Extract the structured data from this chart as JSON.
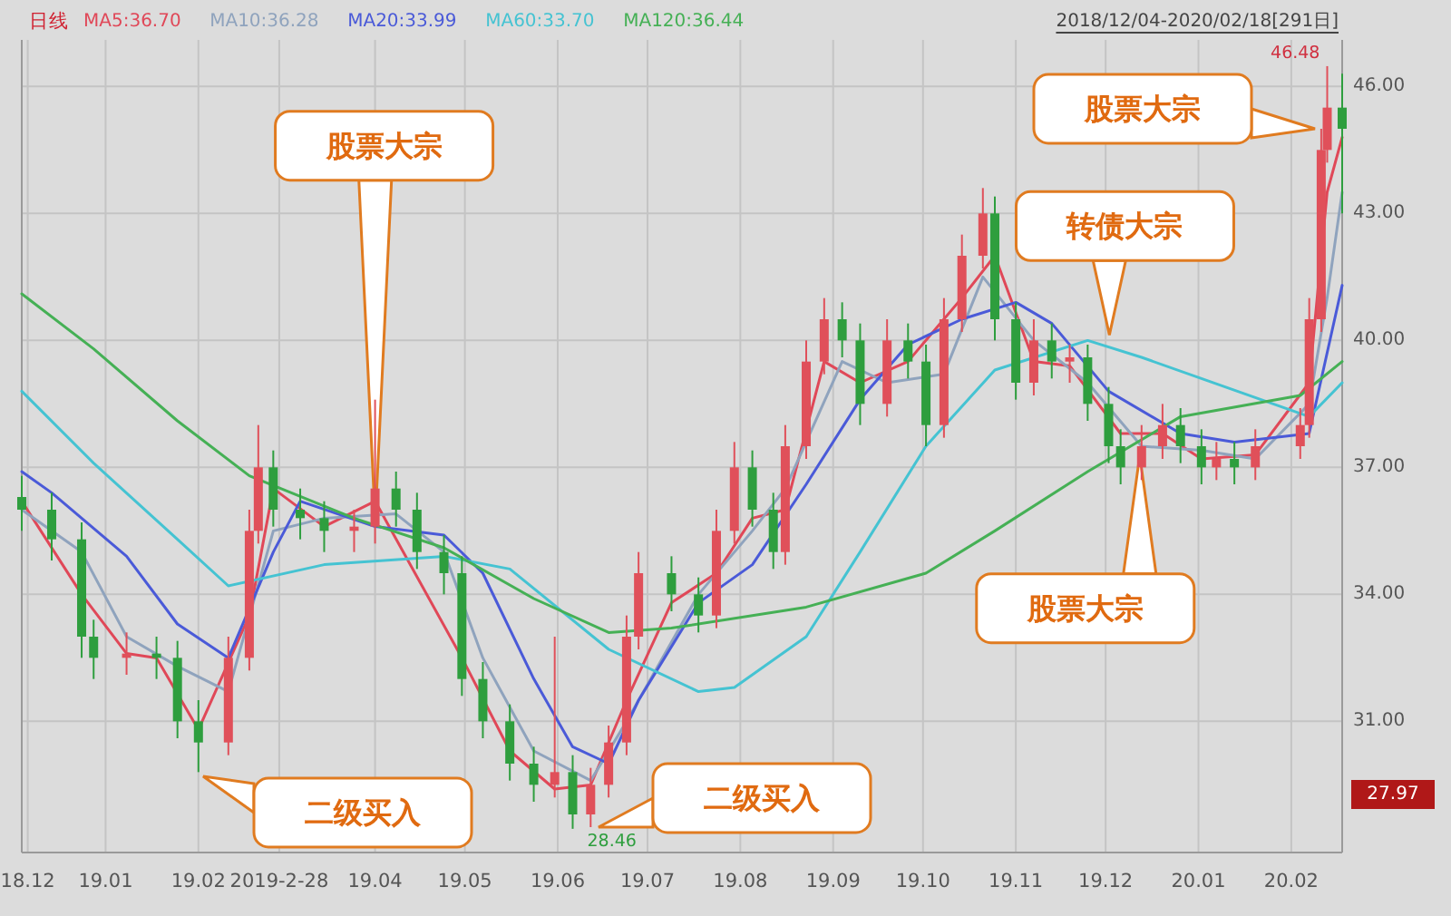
{
  "chart_data": {
    "type": "candlestick",
    "title": "日线",
    "subtitle": "2018/12/04-2020/02/18[291日]",
    "legend": "top left",
    "grid": true,
    "xlim": [
      "2018-12-04",
      "2020-02-18"
    ],
    "ylim": [
      27.9,
      47.1
    ],
    "xticks": [
      {
        "value": "2018-12-06",
        "label": "18.12"
      },
      {
        "value": "2019-01-01",
        "label": "19.01"
      },
      {
        "value": "2019-02-01",
        "label": "19.02"
      },
      {
        "value": "2019-02-28",
        "label": "2019-2-28"
      },
      {
        "value": "2019-04-01",
        "label": "19.04"
      },
      {
        "value": "2019-05-01",
        "label": "19.05"
      },
      {
        "value": "2019-06-01",
        "label": "19.06"
      },
      {
        "value": "2019-07-01",
        "label": "19.07"
      },
      {
        "value": "2019-08-01",
        "label": "19.08"
      },
      {
        "value": "2019-09-01",
        "label": "19.09"
      },
      {
        "value": "2019-10-01",
        "label": "19.10"
      },
      {
        "value": "2019-11-01",
        "label": "19.11"
      },
      {
        "value": "2019-12-01",
        "label": "19.12"
      },
      {
        "value": "2020-01-01",
        "label": "20.01"
      },
      {
        "value": "2020-02-01",
        "label": "20.02"
      }
    ],
    "yticks": [
      {
        "value": 31,
        "label": "31.00"
      },
      {
        "value": 34,
        "label": "34.00"
      },
      {
        "value": 37,
        "label": "37.00"
      },
      {
        "value": 40,
        "label": "40.00"
      },
      {
        "value": 43,
        "label": "43.00"
      },
      {
        "value": 46,
        "label": "46.00"
      }
    ],
    "x": [
      "2018-12-04",
      "2018-12-14",
      "2018-12-24",
      "2018-12-28",
      "2019-01-08",
      "2019-01-18",
      "2019-01-25",
      "2019-02-01",
      "2019-02-11",
      "2019-02-18",
      "2019-02-21",
      "2019-02-26",
      "2019-03-07",
      "2019-03-15",
      "2019-03-25",
      "2019-04-01",
      "2019-04-08",
      "2019-04-15",
      "2019-04-24",
      "2019-04-30",
      "2019-05-07",
      "2019-05-16",
      "2019-05-24",
      "2019-05-31",
      "2019-06-06",
      "2019-06-12",
      "2019-06-18",
      "2019-06-24",
      "2019-06-28",
      "2019-07-09",
      "2019-07-18",
      "2019-07-24",
      "2019-07-30",
      "2019-08-05",
      "2019-08-12",
      "2019-08-16",
      "2019-08-23",
      "2019-08-29",
      "2019-09-04",
      "2019-09-10",
      "2019-09-19",
      "2019-09-26",
      "2019-10-02",
      "2019-10-08",
      "2019-10-14",
      "2019-10-21",
      "2019-10-25",
      "2019-11-01",
      "2019-11-07",
      "2019-11-13",
      "2019-11-19",
      "2019-11-25",
      "2019-12-02",
      "2019-12-06",
      "2019-12-13",
      "2019-12-20",
      "2019-12-26",
      "2020-01-02",
      "2020-01-07",
      "2020-01-13",
      "2020-01-20",
      "2020-02-04",
      "2020-02-07",
      "2020-02-11",
      "2020-02-13",
      "2020-02-18"
    ],
    "ohlc": [
      [
        36.3,
        36.8,
        35.5,
        36.0
      ],
      [
        36.0,
        36.4,
        34.8,
        35.3
      ],
      [
        35.3,
        35.7,
        32.5,
        33.0
      ],
      [
        33.0,
        33.4,
        32.0,
        32.5
      ],
      [
        32.5,
        33.1,
        32.1,
        32.6
      ],
      [
        32.6,
        33.0,
        32.0,
        32.5
      ],
      [
        32.5,
        32.9,
        30.6,
        31.0
      ],
      [
        31.0,
        31.5,
        29.8,
        30.5
      ],
      [
        30.5,
        33.0,
        30.2,
        32.5
      ],
      [
        32.5,
        36.0,
        32.2,
        35.5
      ],
      [
        35.5,
        38.0,
        35.2,
        37.0
      ],
      [
        37.0,
        37.4,
        35.6,
        36.0
      ],
      [
        36.0,
        36.5,
        35.3,
        35.8
      ],
      [
        35.8,
        36.2,
        35.0,
        35.5
      ],
      [
        35.5,
        36.0,
        35.0,
        35.6
      ],
      [
        35.6,
        38.6,
        35.2,
        36.5
      ],
      [
        36.5,
        36.9,
        35.6,
        36.0
      ],
      [
        36.0,
        36.4,
        34.6,
        35.0
      ],
      [
        35.0,
        35.4,
        34.0,
        34.5
      ],
      [
        34.5,
        34.9,
        31.6,
        32.0
      ],
      [
        32.0,
        32.4,
        30.6,
        31.0
      ],
      [
        31.0,
        31.4,
        29.6,
        30.0
      ],
      [
        30.0,
        30.4,
        29.1,
        29.5
      ],
      [
        29.5,
        33.0,
        29.2,
        29.8
      ],
      [
        29.8,
        30.2,
        28.46,
        28.8
      ],
      [
        28.8,
        29.9,
        28.5,
        29.5
      ],
      [
        29.5,
        30.9,
        29.2,
        30.5
      ],
      [
        30.5,
        33.5,
        30.2,
        33.0
      ],
      [
        33.0,
        35.0,
        32.7,
        34.5
      ],
      [
        34.5,
        34.9,
        33.6,
        34.0
      ],
      [
        34.0,
        34.4,
        33.1,
        33.5
      ],
      [
        33.5,
        36.0,
        33.2,
        35.5
      ],
      [
        35.5,
        37.6,
        35.2,
        37.0
      ],
      [
        37.0,
        37.4,
        35.6,
        36.0
      ],
      [
        36.0,
        36.4,
        34.6,
        35.0
      ],
      [
        35.0,
        38.0,
        34.7,
        37.5
      ],
      [
        37.5,
        40.0,
        37.2,
        39.5
      ],
      [
        39.5,
        41.0,
        39.2,
        40.5
      ],
      [
        40.5,
        40.9,
        39.6,
        40.0
      ],
      [
        40.0,
        40.4,
        38.0,
        38.5
      ],
      [
        38.5,
        40.5,
        38.2,
        40.0
      ],
      [
        40.0,
        40.4,
        39.1,
        39.5
      ],
      [
        39.5,
        39.9,
        37.5,
        38.0
      ],
      [
        38.0,
        41.0,
        37.7,
        40.5
      ],
      [
        40.5,
        42.5,
        40.2,
        42.0
      ],
      [
        42.0,
        43.6,
        41.7,
        43.0
      ],
      [
        43.0,
        43.4,
        40.0,
        40.5
      ],
      [
        40.5,
        40.9,
        38.6,
        39.0
      ],
      [
        39.0,
        40.5,
        38.7,
        40.0
      ],
      [
        40.0,
        40.4,
        39.1,
        39.5
      ],
      [
        39.5,
        39.9,
        39.0,
        39.6
      ],
      [
        39.6,
        39.9,
        38.1,
        38.5
      ],
      [
        38.5,
        38.9,
        37.1,
        37.5
      ],
      [
        37.5,
        37.9,
        36.6,
        37.0
      ],
      [
        37.0,
        38.0,
        36.7,
        37.5
      ],
      [
        37.5,
        38.5,
        37.2,
        38.0
      ],
      [
        38.0,
        38.4,
        37.1,
        37.5
      ],
      [
        37.5,
        37.9,
        36.6,
        37.0
      ],
      [
        37.0,
        37.6,
        36.7,
        37.2
      ],
      [
        37.2,
        37.6,
        36.6,
        37.0
      ],
      [
        37.0,
        37.9,
        36.7,
        37.5
      ],
      [
        37.5,
        38.4,
        37.2,
        38.0
      ],
      [
        38.0,
        41.0,
        37.7,
        40.5
      ],
      [
        40.5,
        45.0,
        40.2,
        44.5
      ],
      [
        44.5,
        46.48,
        44.2,
        45.5
      ],
      [
        45.5,
        46.3,
        43.0,
        45.0
      ]
    ],
    "colors": [
      "#2e9e3e",
      "#2e9e3e",
      "#2e9e3e",
      "#2e9e3e",
      "#e0505a",
      "#2e9e3e",
      "#2e9e3e",
      "#2e9e3e",
      "#e0505a",
      "#e0505a",
      "#e0505a",
      "#2e9e3e",
      "#2e9e3e",
      "#2e9e3e",
      "#e0505a",
      "#e0505a",
      "#2e9e3e",
      "#2e9e3e",
      "#2e9e3e",
      "#2e9e3e",
      "#2e9e3e",
      "#2e9e3e",
      "#2e9e3e",
      "#e0505a",
      "#2e9e3e",
      "#e0505a",
      "#e0505a",
      "#e0505a",
      "#e0505a",
      "#2e9e3e",
      "#2e9e3e",
      "#e0505a",
      "#e0505a",
      "#2e9e3e",
      "#2e9e3e",
      "#e0505a",
      "#e0505a",
      "#e0505a",
      "#2e9e3e",
      "#2e9e3e",
      "#e0505a",
      "#2e9e3e",
      "#2e9e3e",
      "#e0505a",
      "#e0505a",
      "#e0505a",
      "#2e9e3e",
      "#2e9e3e",
      "#e0505a",
      "#2e9e3e",
      "#e0505a",
      "#2e9e3e",
      "#2e9e3e",
      "#2e9e3e",
      "#e0505a",
      "#e0505a",
      "#2e9e3e",
      "#2e9e3e",
      "#e0505a",
      "#2e9e3e",
      "#e0505a",
      "#e0505a",
      "#e0505a",
      "#e0505a",
      "#e0505a",
      "#2e9e3e"
    ],
    "series": [
      {
        "name": "MA5:36.70",
        "type": "line",
        "color": "#e04858",
        "x": [
          "2018-12-04",
          "2018-12-24",
          "2019-01-08",
          "2019-01-18",
          "2019-02-01",
          "2019-02-18",
          "2019-02-26",
          "2019-03-15",
          "2019-04-01",
          "2019-04-30",
          "2019-05-16",
          "2019-05-31",
          "2019-06-12",
          "2019-06-24",
          "2019-07-09",
          "2019-07-24",
          "2019-08-05",
          "2019-08-16",
          "2019-08-29",
          "2019-09-10",
          "2019-09-26",
          "2019-10-14",
          "2019-10-25",
          "2019-11-07",
          "2019-11-19",
          "2019-12-06",
          "2019-12-20",
          "2020-01-02",
          "2020-01-20",
          "2020-02-07",
          "2020-02-13",
          "2020-02-18"
        ],
        "values": [
          36.2,
          34.0,
          32.6,
          32.5,
          30.8,
          33.5,
          36.5,
          35.6,
          36.2,
          32.5,
          30.3,
          29.4,
          29.5,
          31.5,
          33.8,
          34.5,
          35.8,
          36.0,
          39.5,
          39.0,
          39.5,
          41.0,
          42.0,
          39.5,
          39.4,
          37.8,
          37.8,
          37.2,
          37.3,
          39.0,
          43.5,
          44.8
        ]
      },
      {
        "name": "MA10:36.28",
        "type": "line",
        "color": "#8fa3bd",
        "x": [
          "2018-12-04",
          "2018-12-24",
          "2019-01-08",
          "2019-01-25",
          "2019-02-11",
          "2019-02-26",
          "2019-03-15",
          "2019-04-08",
          "2019-04-24",
          "2019-05-07",
          "2019-05-24",
          "2019-06-12",
          "2019-06-24",
          "2019-07-18",
          "2019-08-05",
          "2019-08-16",
          "2019-09-04",
          "2019-09-19",
          "2019-10-08",
          "2019-10-21",
          "2019-11-07",
          "2019-11-25",
          "2019-12-13",
          "2020-01-02",
          "2020-01-20",
          "2020-02-07",
          "2020-02-13",
          "2020-02-18"
        ],
        "values": [
          36.0,
          35.0,
          33.0,
          32.3,
          31.7,
          35.5,
          35.8,
          35.9,
          35.0,
          32.5,
          30.3,
          29.6,
          31.0,
          34.0,
          35.5,
          36.5,
          39.5,
          39.0,
          39.2,
          41.5,
          40.0,
          39.0,
          37.5,
          37.4,
          37.2,
          38.5,
          41.0,
          43.5
        ]
      },
      {
        "name": "MA20:33.99",
        "type": "line",
        "color": "#4a5ad8",
        "x": [
          "2018-12-04",
          "2018-12-14",
          "2019-01-08",
          "2019-01-25",
          "2019-02-11",
          "2019-02-26",
          "2019-03-07",
          "2019-04-01",
          "2019-04-24",
          "2019-05-07",
          "2019-05-24",
          "2019-06-06",
          "2019-06-18",
          "2019-06-28",
          "2019-07-18",
          "2019-08-05",
          "2019-08-23",
          "2019-09-10",
          "2019-09-26",
          "2019-10-14",
          "2019-11-01",
          "2019-11-13",
          "2019-12-02",
          "2019-12-26",
          "2020-01-13",
          "2020-02-07",
          "2020-02-18"
        ],
        "values": [
          36.9,
          36.4,
          34.9,
          33.3,
          32.5,
          35.0,
          36.2,
          35.6,
          35.4,
          34.5,
          32.0,
          30.4,
          30.0,
          31.5,
          33.8,
          34.7,
          36.6,
          38.6,
          39.9,
          40.5,
          40.9,
          40.4,
          38.8,
          37.8,
          37.6,
          37.8,
          41.3
        ]
      },
      {
        "name": "MA60:33.70",
        "type": "line",
        "color": "#45c3d2",
        "x": [
          "2018-12-04",
          "2018-12-28",
          "2019-01-25",
          "2019-02-11",
          "2019-03-15",
          "2019-04-24",
          "2019-05-16",
          "2019-06-18",
          "2019-07-18",
          "2019-07-30",
          "2019-08-23",
          "2019-09-10",
          "2019-10-02",
          "2019-10-25",
          "2019-11-25",
          "2019-12-13",
          "2020-01-02",
          "2020-02-07",
          "2020-02-18"
        ],
        "values": [
          38.8,
          37.1,
          35.3,
          34.2,
          34.7,
          34.9,
          34.6,
          32.7,
          31.7,
          31.8,
          33.0,
          35.0,
          37.5,
          39.3,
          40.0,
          39.6,
          39.1,
          38.2,
          39.0
        ]
      },
      {
        "name": "MA120:36.44",
        "type": "line",
        "color": "#45b055",
        "x": [
          "2018-12-04",
          "2018-12-28",
          "2019-01-25",
          "2019-02-18",
          "2019-03-25",
          "2019-04-24",
          "2019-05-24",
          "2019-06-18",
          "2019-07-09",
          "2019-08-23",
          "2019-10-02",
          "2019-10-25",
          "2019-11-25",
          "2019-12-26",
          "2020-02-04",
          "2020-02-18"
        ],
        "values": [
          41.1,
          39.8,
          38.1,
          36.8,
          35.8,
          35.1,
          33.9,
          33.1,
          33.2,
          33.7,
          34.5,
          35.5,
          36.9,
          38.2,
          38.7,
          39.5
        ]
      }
    ],
    "annotations": [
      {
        "text": "股票大宗",
        "x": "2019-04-01",
        "y": 35.6
      },
      "二级买入",
      "二级买入",
      {
        "text": "转债大宗",
        "x": "2019-12-02",
        "y": 40.0
      },
      {
        "text": "股票大宗",
        "x": "2019-12-13",
        "y": 37.4
      },
      "股票大宗",
      {
        "text": "46.48",
        "x": "2020-02-13",
        "y": 46.48
      },
      {
        "text": "28.46",
        "x": "2019-06-06",
        "y": 28.46
      },
      "27.97"
    ]
  }
}
